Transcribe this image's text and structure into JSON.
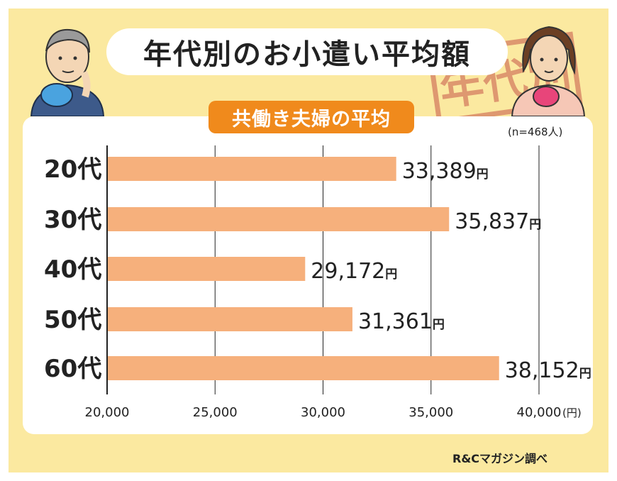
{
  "header": {
    "title": "年代別のお小遣い平均額",
    "subtitle": "共働き夫婦の平均",
    "sample_size": "(n=468人)",
    "credit": "R&Cマガジン調べ",
    "stamp_text": "年代別"
  },
  "colors": {
    "background": "#fbe9a0",
    "bar": "#f6b07c",
    "subtitle_bg": "#f08a1c",
    "stamp": "#c8574a"
  },
  "chart_data": {
    "type": "bar",
    "orientation": "horizontal",
    "title": "年代別のお小遣い平均額",
    "subtitle": "共働き夫婦の平均",
    "categories": [
      "20代",
      "30代",
      "40代",
      "50代",
      "60代"
    ],
    "values": [
      33389,
      35837,
      29172,
      31361,
      38152
    ],
    "value_labels": [
      "33,389",
      "35,837",
      "29,172",
      "31,361",
      "38,152"
    ],
    "value_unit": "円",
    "xlim": [
      20000,
      40000
    ],
    "x_ticks": [
      20000,
      25000,
      30000,
      35000,
      40000
    ],
    "x_tick_labels": [
      "20,000",
      "25,000",
      "30,000",
      "35,000",
      "40,000"
    ],
    "x_unit_label": "(円)",
    "grid": true,
    "legend": "none"
  }
}
